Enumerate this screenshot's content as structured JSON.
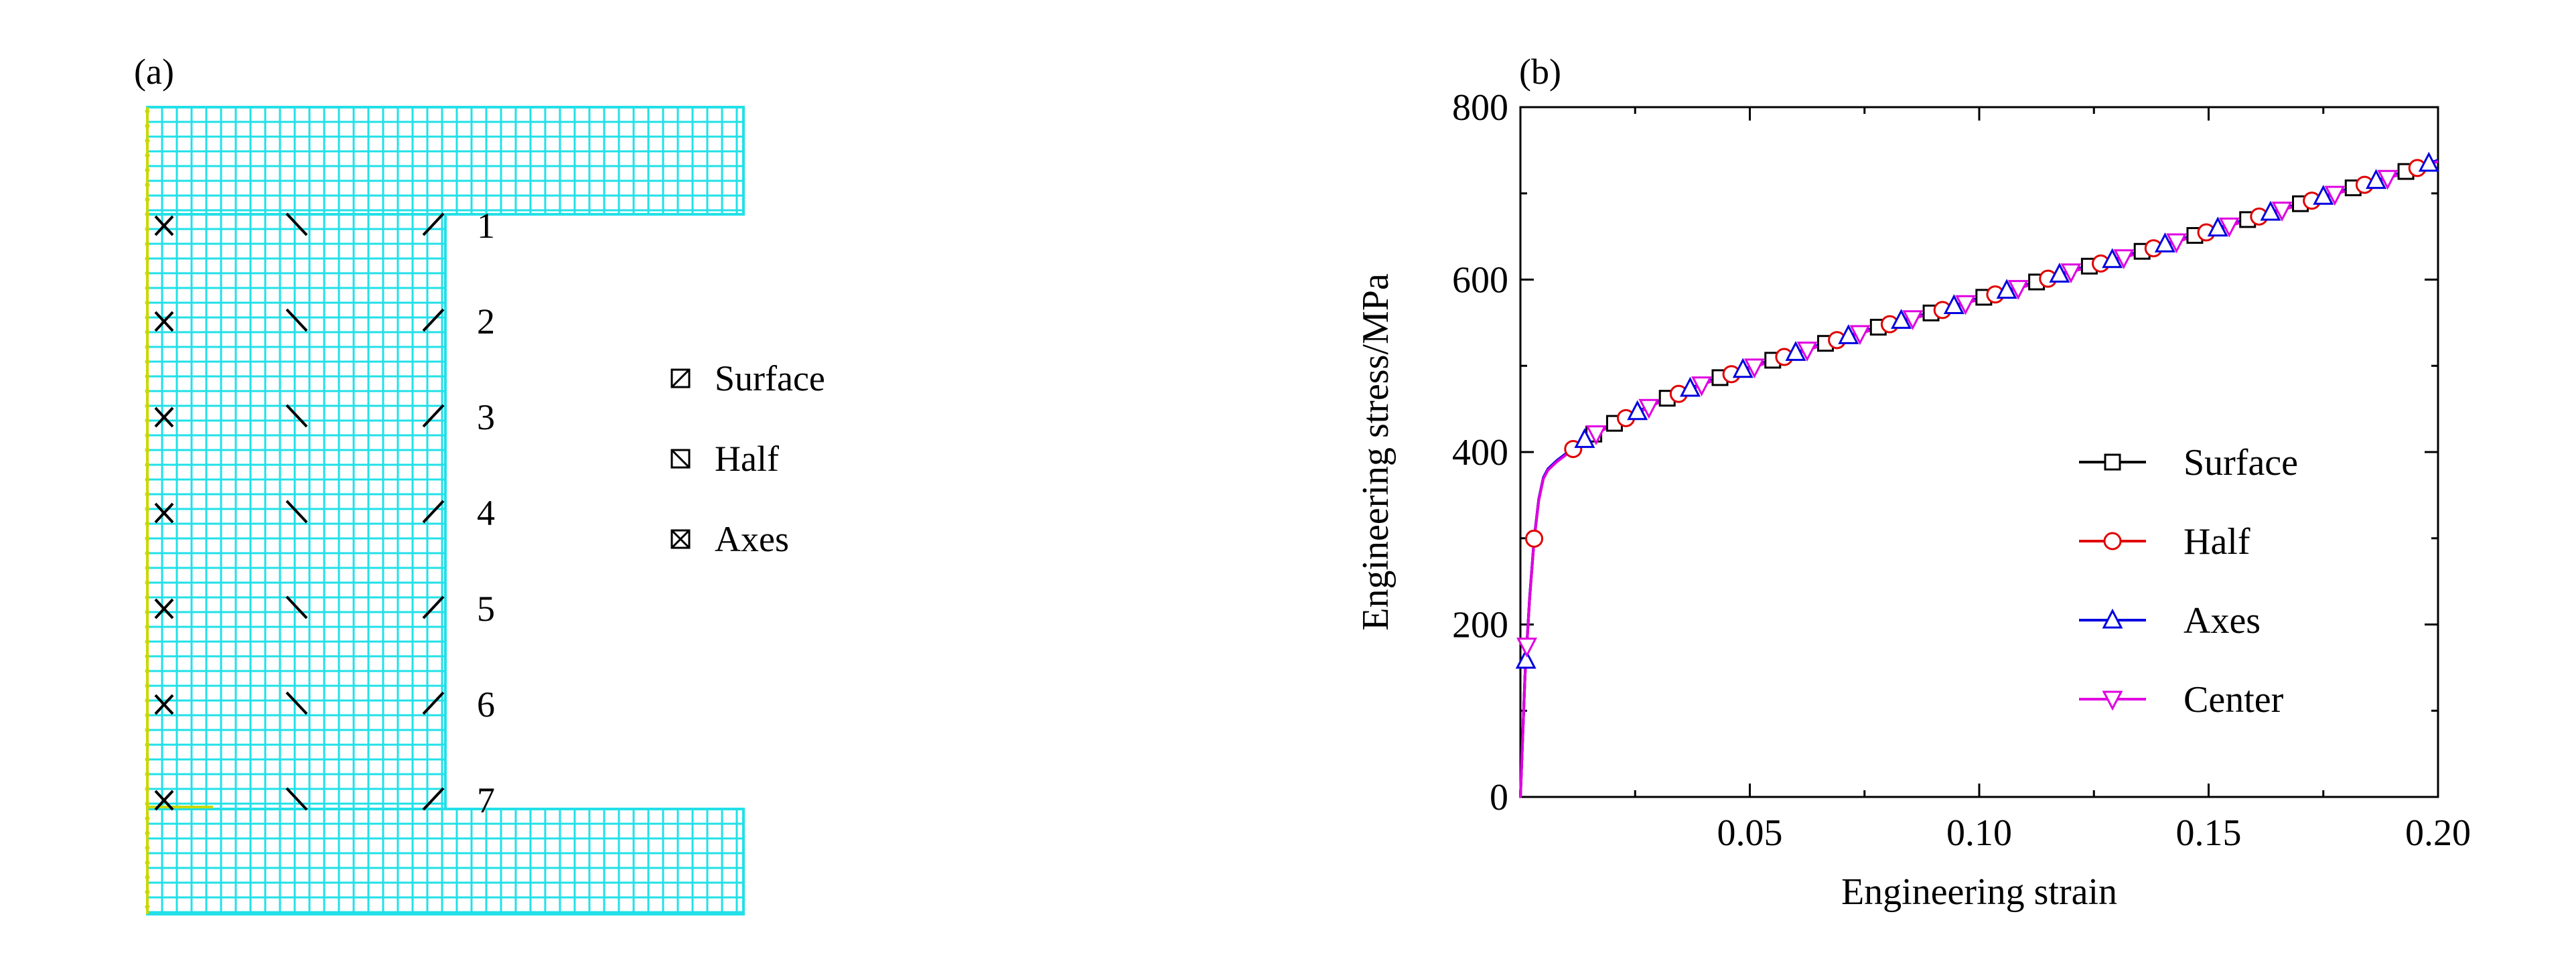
{
  "panel_a": {
    "label": "(a)",
    "row_labels": [
      "1",
      "2",
      "3",
      "4",
      "5",
      "6",
      "7"
    ],
    "legend": [
      {
        "label": "Surface",
        "marker": "square-slash-icon"
      },
      {
        "label": "Half",
        "marker": "square-backslash-icon"
      },
      {
        "label": "Axes",
        "marker": "square-cross-icon"
      }
    ],
    "mesh_color": "#22e0e8",
    "axis_node_color": "#c8d800"
  },
  "panel_b": {
    "label": "(b)"
  },
  "chart_data": {
    "type": "line",
    "xlabel": "Engineering strain",
    "ylabel": "Engineering stress/MPa",
    "xlim": [
      0,
      0.2
    ],
    "ylim": [
      0,
      800
    ],
    "x_ticks": [
      0.05,
      0.1,
      0.15,
      0.2
    ],
    "x_tick_labels": [
      "0.05",
      "0.10",
      "0.15",
      "0.20"
    ],
    "y_ticks": [
      0,
      200,
      400,
      600,
      800
    ],
    "y_tick_labels": [
      "0",
      "200",
      "400",
      "600",
      "800"
    ],
    "grid": false,
    "legend_position": "bottom-right",
    "curve": {
      "x": [
        0,
        0.0005,
        0.001,
        0.002,
        0.003,
        0.004,
        0.005,
        0.006,
        0.008,
        0.01,
        0.015,
        0.02,
        0.03,
        0.04,
        0.05,
        0.06,
        0.07,
        0.08,
        0.09,
        0.1,
        0.11,
        0.12,
        0.13,
        0.14,
        0.15,
        0.16,
        0.17,
        0.18,
        0.19,
        0.2
      ],
      "y": [
        0,
        70,
        140,
        230,
        300,
        345,
        370,
        380,
        390,
        398,
        418,
        432,
        458,
        480,
        498,
        515,
        532,
        548,
        562,
        578,
        593,
        610,
        624,
        640,
        656,
        672,
        688,
        704,
        720,
        738
      ]
    },
    "series": [
      {
        "name": "Surface",
        "color": "#000000",
        "marker": "square",
        "marker_start": 0.016
      },
      {
        "name": "Half",
        "color": "#e00000",
        "marker": "circle",
        "marker_start": 0.003
      },
      {
        "name": "Axes",
        "color": "#0000e0",
        "marker": "triangle-up",
        "marker_start": 0.0012
      },
      {
        "name": "Center",
        "color": "#e000e0",
        "marker": "triangle-down",
        "marker_start": 0.0014
      }
    ]
  }
}
